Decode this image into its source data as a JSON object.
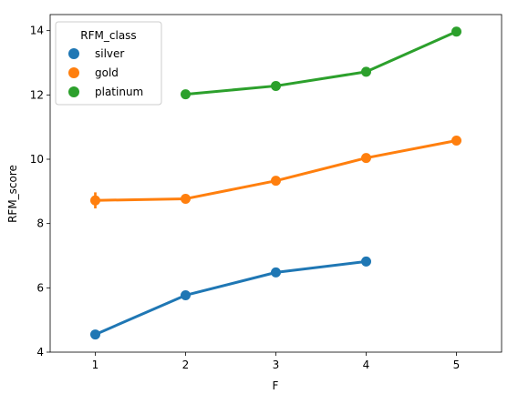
{
  "chart_data": {
    "type": "line",
    "x": [
      1,
      2,
      3,
      4,
      5
    ],
    "xlabel": "F",
    "ylabel": "RFM_score",
    "xlim": [
      0.5,
      5.5
    ],
    "ylim": [
      4,
      14.5
    ],
    "xticks": [
      1,
      2,
      3,
      4,
      5
    ],
    "yticks": [
      4,
      6,
      8,
      10,
      12,
      14
    ],
    "grid": false,
    "legend": {
      "title": "RFM_class",
      "position": "top-left",
      "entries": [
        "silver",
        "gold",
        "platinum"
      ]
    },
    "series": [
      {
        "name": "silver",
        "color": "#1f77b4",
        "points": [
          {
            "x": 1,
            "y": 4.55,
            "err": 0.05
          },
          {
            "x": 2,
            "y": 5.77,
            "err": 0.05
          },
          {
            "x": 3,
            "y": 6.48,
            "err": 0.05
          },
          {
            "x": 4,
            "y": 6.82,
            "err": 0.15
          }
        ]
      },
      {
        "name": "gold",
        "color": "#ff7f0e",
        "points": [
          {
            "x": 1,
            "y": 8.72,
            "err": 0.25
          },
          {
            "x": 2,
            "y": 8.77,
            "err": 0.07
          },
          {
            "x": 3,
            "y": 9.33,
            "err": 0.05
          },
          {
            "x": 4,
            "y": 10.04,
            "err": 0.06
          },
          {
            "x": 5,
            "y": 10.58,
            "err": 0.14
          }
        ]
      },
      {
        "name": "platinum",
        "color": "#2ca02c",
        "points": [
          {
            "x": 2,
            "y": 12.02,
            "err": 0.04
          },
          {
            "x": 3,
            "y": 12.28,
            "err": 0.05
          },
          {
            "x": 4,
            "y": 12.72,
            "err": 0.05
          },
          {
            "x": 5,
            "y": 13.97,
            "err": 0.05
          }
        ]
      }
    ]
  }
}
